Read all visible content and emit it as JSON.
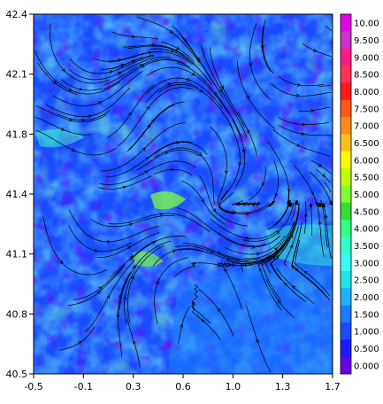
{
  "chart_data": {
    "type": "heatmap",
    "title": "",
    "xlabel": "",
    "ylabel": "",
    "xlim": [
      -0.5,
      1.7
    ],
    "ylim": [
      40.5,
      42.4
    ],
    "x_ticks": [
      "-0.5",
      "-0.1",
      "0.3",
      "0.6",
      "1.0",
      "1.3",
      "1.7"
    ],
    "y_ticks": [
      "42.4",
      "42.1",
      "41.8",
      "41.4",
      "41.1",
      "40.8",
      "40.5"
    ],
    "overlay": "streamlines",
    "colorbar": {
      "position": "right",
      "levels": [
        "10.00",
        "9.500",
        "9.000",
        "8.500",
        "8.000",
        "7.500",
        "7.000",
        "6.500",
        "6.000",
        "5.500",
        "5.000",
        "4.500",
        "4.000",
        "3.500",
        "3.000",
        "2.500",
        "2.000",
        "1.500",
        "1.000",
        "0.500",
        "0.000"
      ],
      "colors": [
        "#e600e6",
        "#cc33cc",
        "#ff1a8c",
        "#ff3355",
        "#ff1a1a",
        "#ff5a1a",
        "#ff8c1a",
        "#ffbf1a",
        "#ffff00",
        "#bfff00",
        "#80ff33",
        "#33dd33",
        "#33ff80",
        "#33ffcc",
        "#33ffff",
        "#1ae6e6",
        "#1ab3ff",
        "#1a80ff",
        "#1a4dff",
        "#1a1aff",
        "#6600e6"
      ]
    }
  }
}
